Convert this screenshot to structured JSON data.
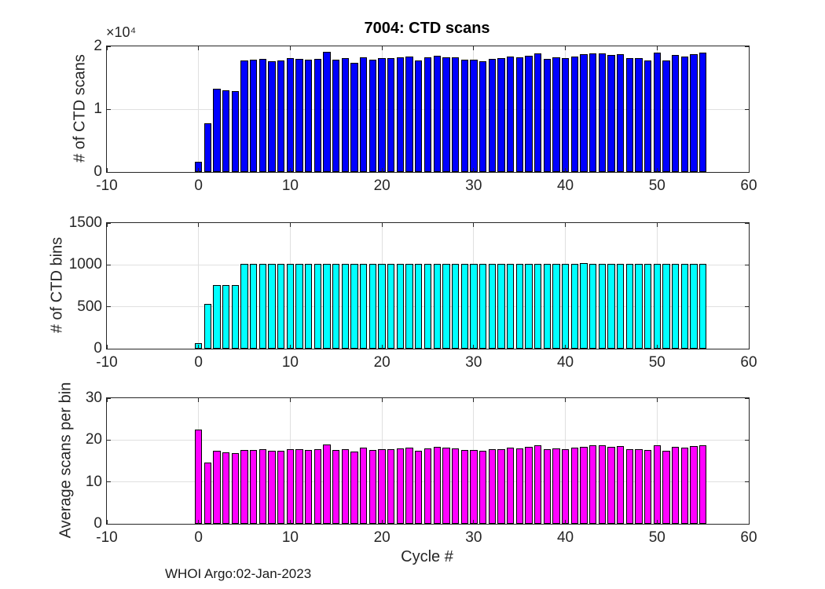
{
  "footer": {
    "text": "WHOI Argo:02-Jan-2023"
  },
  "chart_data": {
    "type": "bar",
    "title": "7004: CTD scans",
    "xlabel": "Cycle #",
    "xlim": [
      -10,
      60
    ],
    "xticks": [
      -10,
      0,
      10,
      20,
      30,
      40,
      50,
      60
    ],
    "xtick_labels": [
      "-10",
      "0",
      "10",
      "20",
      "30",
      "40",
      "50",
      "60"
    ],
    "grid": true,
    "bar_rel_width": 0.8,
    "cycles": [
      0,
      1,
      2,
      3,
      4,
      5,
      6,
      7,
      8,
      9,
      10,
      11,
      12,
      13,
      14,
      15,
      16,
      17,
      18,
      19,
      20,
      21,
      22,
      23,
      24,
      25,
      26,
      27,
      28,
      29,
      30,
      31,
      32,
      33,
      34,
      35,
      36,
      37,
      38,
      39,
      40,
      41,
      42,
      43,
      44,
      45,
      46,
      47,
      48,
      49,
      50,
      51,
      52,
      53,
      54,
      55
    ],
    "subplots": [
      {
        "title": "7004: CTD scans",
        "ylabel": "# of CTD scans",
        "ylim": [
          0,
          20000
        ],
        "yticks": [
          0,
          10000,
          20000
        ],
        "ytick_labels": [
          "0",
          "1",
          "2"
        ],
        "offset_label": "×10⁴",
        "bar_color": "#0000FF",
        "edge_color": "#000000",
        "values": [
          1575,
          7800,
          13300,
          13000,
          12850,
          17800,
          17900,
          18000,
          17600,
          17700,
          18100,
          18000,
          17900,
          18000,
          19100,
          17900,
          18100,
          17400,
          18300,
          17900,
          18100,
          18100,
          18200,
          18400,
          17700,
          18200,
          18500,
          18300,
          18200,
          17900,
          17900,
          17600,
          18000,
          18100,
          18400,
          18200,
          18500,
          18900,
          18000,
          18200,
          18100,
          18400,
          18700,
          18900,
          18900,
          18600,
          18800,
          18100,
          18100,
          17800,
          19000,
          17700,
          18600,
          18400,
          18700,
          19000
        ]
      },
      {
        "ylabel": "# of CTD bins",
        "ylim": [
          0,
          1500
        ],
        "yticks": [
          0,
          500,
          1000,
          1500
        ],
        "ytick_labels": [
          "0",
          "500",
          "1000",
          "1500"
        ],
        "bar_color": "#00FFFF",
        "edge_color": "#000000",
        "values": [
          70,
          530,
          760,
          760,
          760,
          1010,
          1010,
          1010,
          1010,
          1010,
          1010,
          1010,
          1010,
          1010,
          1010,
          1010,
          1010,
          1010,
          1010,
          1010,
          1010,
          1010,
          1010,
          1010,
          1010,
          1010,
          1010,
          1010,
          1010,
          1010,
          1010,
          1010,
          1010,
          1010,
          1010,
          1010,
          1010,
          1010,
          1010,
          1010,
          1010,
          1010,
          1020,
          1010,
          1010,
          1010,
          1010,
          1010,
          1010,
          1010,
          1010,
          1010,
          1010,
          1010,
          1010,
          1010
        ]
      },
      {
        "ylabel": "Average scans per bin",
        "ylim": [
          0,
          30
        ],
        "yticks": [
          0,
          10,
          20,
          30
        ],
        "ytick_labels": [
          "0",
          "10",
          "20",
          "30"
        ],
        "bar_color": "#FF00FF",
        "edge_color": "#000000",
        "values": [
          22.5,
          14.7,
          17.5,
          17.1,
          16.9,
          17.6,
          17.7,
          17.8,
          17.4,
          17.5,
          17.9,
          17.8,
          17.7,
          17.8,
          18.9,
          17.7,
          17.9,
          17.2,
          18.1,
          17.7,
          17.9,
          17.9,
          18.0,
          18.2,
          17.5,
          18.0,
          18.3,
          18.1,
          18.0,
          17.7,
          17.7,
          17.4,
          17.8,
          17.9,
          18.2,
          18.0,
          18.3,
          18.7,
          17.8,
          18.0,
          17.9,
          18.2,
          18.3,
          18.7,
          18.7,
          18.4,
          18.6,
          17.9,
          17.9,
          17.6,
          18.8,
          17.5,
          18.4,
          18.2,
          18.5,
          18.8
        ]
      }
    ]
  }
}
